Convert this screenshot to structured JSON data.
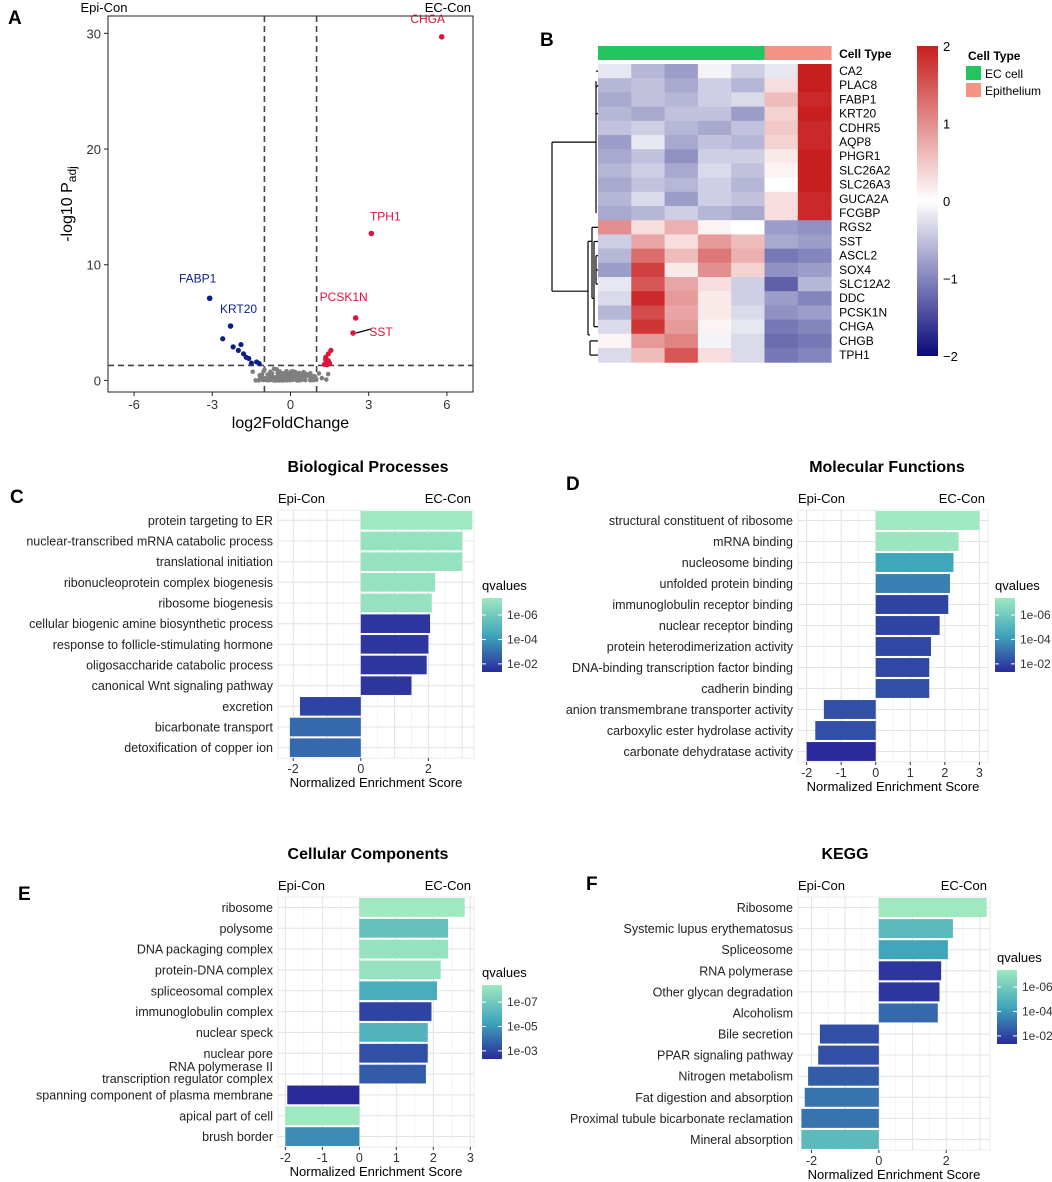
{
  "palette": {
    "q_low": "#9fe8c0",
    "q_mid": "#3fa6bb",
    "q_high": "#2b2a9c",
    "up": "#dc143c",
    "down": "#0a1e8c",
    "ns": "#7f7f7f",
    "ec_cell": "#22c55e",
    "epithelium": "#f49383",
    "heat_low": "#0a0a7a",
    "heat_mid": "#ffffff",
    "heat_high": "#c81e1e"
  },
  "panels": {
    "a": "A",
    "b": "B",
    "c": "C",
    "d": "D",
    "e": "E",
    "f": "F"
  },
  "chart_data": [
    {
      "id": "A",
      "type": "scatter",
      "title": "",
      "xlabel": "log2FoldChange",
      "ylabel": "-log10 P",
      "ylabel_sub": "adj",
      "left_group": "Epi-Con",
      "right_group": "EC-Con",
      "xlim": [
        -7,
        7
      ],
      "ylim": [
        -1,
        31.5
      ],
      "xticks": [
        -6,
        -3,
        0,
        3,
        6
      ],
      "yticks": [
        0,
        10,
        20,
        30
      ],
      "vlines": [
        -1,
        1
      ],
      "hline": 1.3,
      "labeled": [
        {
          "gene": "CHGA",
          "x": 5.8,
          "y": 29.7,
          "group": "up"
        },
        {
          "gene": "TPH1",
          "x": 3.1,
          "y": 12.7,
          "group": "up"
        },
        {
          "gene": "PCSK1N",
          "x": 2.5,
          "y": 5.4,
          "group": "up"
        },
        {
          "gene": "SST",
          "x": 2.4,
          "y": 4.1,
          "group": "up"
        },
        {
          "gene": "FABP1",
          "x": -3.1,
          "y": 7.1,
          "group": "down"
        },
        {
          "gene": "KRT20",
          "x": -2.3,
          "y": 4.7,
          "group": "down"
        }
      ],
      "up_points": [
        [
          1.35,
          2.0
        ],
        [
          1.45,
          1.7
        ],
        [
          1.5,
          1.5
        ],
        [
          1.4,
          1.35
        ],
        [
          1.3,
          1.4
        ],
        [
          1.55,
          2.6
        ],
        [
          1.45,
          2.3
        ],
        [
          1.35,
          1.8
        ]
      ],
      "down_points": [
        [
          -1.6,
          1.9
        ],
        [
          -1.8,
          2.3
        ],
        [
          -2.0,
          2.6
        ],
        [
          -1.3,
          1.6
        ],
        [
          -1.5,
          1.5
        ],
        [
          -1.9,
          3.1
        ],
        [
          -2.2,
          2.9
        ],
        [
          -1.7,
          2.0
        ],
        [
          -1.2,
          1.45
        ],
        [
          -2.6,
          3.6
        ]
      ]
    },
    {
      "id": "B",
      "type": "heatmap",
      "annotation_title": "Cell Type",
      "legend_title": "Cell Type",
      "legend_entries": [
        "EC cell",
        "Epithelium"
      ],
      "column_types": [
        "EC cell",
        "EC cell",
        "EC cell",
        "EC cell",
        "EC cell",
        "Epithelium",
        "Epithelium"
      ],
      "scale_ticks": [
        2,
        1,
        0,
        -1,
        -2
      ],
      "scale_range": [
        -2,
        2
      ],
      "rows": [
        "CA2",
        "PLAC8",
        "FABP1",
        "KRT20",
        "CDHR5",
        "AQP8",
        "PHGR1",
        "SLC26A2",
        "SLC26A3",
        "GUCA2A",
        "FCGBP",
        "RGS2",
        "SST",
        "ASCL2",
        "SOX4",
        "SLC12A2",
        "DDC",
        "PCSK1N",
        "CHGA",
        "CHGB",
        "TPH1"
      ],
      "values": [
        [
          -0.2,
          -0.6,
          -0.8,
          -0.1,
          -0.4,
          -0.2,
          2.2
        ],
        [
          -0.6,
          -0.5,
          -0.7,
          -0.4,
          -0.6,
          0.3,
          2.1
        ],
        [
          -0.7,
          -0.5,
          -0.6,
          -0.4,
          -0.3,
          0.6,
          1.9
        ],
        [
          -0.6,
          -0.7,
          -0.5,
          -0.5,
          -0.8,
          0.4,
          2.0
        ],
        [
          -0.5,
          -0.4,
          -0.6,
          -0.7,
          -0.5,
          0.5,
          1.9
        ],
        [
          -0.8,
          -0.2,
          -0.7,
          -0.5,
          -0.6,
          0.4,
          1.9
        ],
        [
          -0.7,
          -0.5,
          -0.9,
          -0.4,
          -0.4,
          0.2,
          2.0
        ],
        [
          -0.6,
          -0.4,
          -0.7,
          -0.3,
          -0.5,
          0.1,
          2.0
        ],
        [
          -0.7,
          -0.5,
          -0.6,
          -0.4,
          -0.6,
          0.0,
          2.0
        ],
        [
          -0.6,
          -0.3,
          -0.8,
          -0.4,
          -0.5,
          0.3,
          1.9
        ],
        [
          -0.7,
          -0.6,
          -0.4,
          -0.6,
          -0.7,
          0.3,
          1.9
        ],
        [
          1.0,
          0.3,
          0.7,
          0.1,
          0.0,
          -0.8,
          -0.9
        ],
        [
          -0.4,
          0.8,
          0.3,
          0.9,
          0.6,
          -0.7,
          -0.8
        ],
        [
          -0.6,
          1.3,
          0.6,
          1.2,
          0.7,
          -1.1,
          -1.0
        ],
        [
          -0.8,
          1.7,
          0.2,
          1.0,
          0.4,
          -0.9,
          -0.8
        ],
        [
          -0.2,
          1.5,
          0.8,
          0.3,
          -0.4,
          -1.3,
          -0.6
        ],
        [
          -0.3,
          1.9,
          0.9,
          0.2,
          -0.4,
          -0.8,
          -1.0
        ],
        [
          -0.6,
          1.6,
          0.8,
          0.2,
          -0.3,
          -0.9,
          -0.8
        ],
        [
          -0.3,
          1.8,
          0.9,
          0.1,
          -0.2,
          -1.1,
          -1.0
        ],
        [
          0.1,
          0.9,
          1.1,
          -0.1,
          -0.3,
          -1.2,
          -1.1
        ],
        [
          -0.3,
          0.6,
          1.5,
          0.3,
          -0.3,
          -1.1,
          -1.0
        ]
      ]
    },
    {
      "id": "C",
      "type": "bar",
      "orientation": "horizontal",
      "title": "Biological Processes",
      "xlabel": "Normalized Enrichment Score",
      "left_group": "Epi-Con",
      "right_group": "EC-Con",
      "xlim": [
        -2.45,
        3.35
      ],
      "xticks": [
        -2,
        0,
        2
      ],
      "legend_title": "qvalues",
      "legend_ticks": [
        "1e-06",
        "1e-04",
        "1e-02"
      ],
      "categories": [
        "protein targeting to ER",
        "nuclear-transcribed mRNA catabolic process",
        "translational initiation",
        "ribonucleoprotein complex biogenesis",
        "ribosome biogenesis",
        "cellular biogenic amine biosynthetic process",
        "response to follicle-stimulating hormone",
        "oligosaccharide catabolic process",
        "canonical Wnt signaling pathway",
        "excretion",
        "bicarbonate transport",
        "detoxification of copper ion"
      ],
      "values": [
        3.3,
        3.0,
        3.0,
        2.2,
        2.1,
        2.05,
        2.0,
        1.95,
        1.5,
        -1.8,
        -2.1,
        -2.1
      ],
      "color_level": [
        0.0,
        0.05,
        0.05,
        0.05,
        0.05,
        0.95,
        0.95,
        0.95,
        0.95,
        0.9,
        0.75,
        0.75
      ]
    },
    {
      "id": "D",
      "type": "bar",
      "orientation": "horizontal",
      "title": "Molecular Functions",
      "xlabel": "Normalized Enrichment Score",
      "left_group": "Epi-Con",
      "right_group": "EC-Con",
      "xlim": [
        -2.25,
        3.25
      ],
      "xticks": [
        -2,
        -1,
        0,
        1,
        2,
        3
      ],
      "legend_title": "qvalues",
      "legend_ticks": [
        "1e-06",
        "1e-04",
        "1e-02"
      ],
      "categories": [
        "structural constituent of ribosome",
        "mRNA binding",
        "nucleosome binding",
        "unfolded protein binding",
        "immunoglobulin receptor binding",
        "nuclear receptor binding",
        "protein heterodimerization activity",
        "DNA-binding transcription factor binding",
        "cadherin binding",
        "anion transmembrane transporter activity",
        "carboxylic ester hydrolase activity",
        "carbonate dehydratase activity"
      ],
      "values": [
        3.0,
        2.4,
        2.25,
        2.15,
        2.1,
        1.85,
        1.6,
        1.55,
        1.55,
        -1.5,
        -1.75,
        -2.0
      ],
      "color_level": [
        0.0,
        0.02,
        0.5,
        0.65,
        0.9,
        0.9,
        0.88,
        0.88,
        0.85,
        0.85,
        0.85,
        1.0
      ]
    },
    {
      "id": "E",
      "type": "bar",
      "orientation": "horizontal",
      "title": "Cellular Components",
      "xlabel": "Normalized Enrichment Score",
      "left_group": "Epi-Con",
      "right_group": "EC-Con",
      "xlim": [
        -2.2,
        3.1
      ],
      "xticks": [
        -2,
        -1,
        0,
        1,
        2,
        3
      ],
      "legend_title": "qvalues",
      "legend_ticks": [
        "1e-07",
        "1e-05",
        "1e-03"
      ],
      "categories": [
        "ribosome",
        "polysome",
        "DNA packaging complex",
        "protein-DNA complex",
        "spliceosomal complex",
        "immunoglobulin complex",
        "nuclear speck",
        "nuclear pore",
        "RNA polymerase II\ntranscription regulator complex",
        "spanning component of plasma membrane",
        "apical part of cell",
        "brush border"
      ],
      "values": [
        2.85,
        2.4,
        2.4,
        2.2,
        2.1,
        1.95,
        1.85,
        1.85,
        1.8,
        -1.95,
        -2.0,
        -2.0
      ],
      "color_level": [
        0.0,
        0.3,
        0.05,
        0.05,
        0.45,
        0.9,
        0.4,
        0.85,
        0.8,
        1.0,
        0.0,
        0.6
      ]
    },
    {
      "id": "F",
      "type": "bar",
      "orientation": "horizontal",
      "title": "KEGG",
      "xlabel": "Normalized Enrichment Score",
      "left_group": "Epi-Con",
      "right_group": "EC-Con",
      "xlim": [
        -2.4,
        3.3
      ],
      "xticks": [
        -2,
        0,
        2
      ],
      "legend_title": "qvalues",
      "legend_ticks": [
        "1e-06",
        "1e-04",
        "1e-02"
      ],
      "categories": [
        "Ribosome",
        "Systemic lupus erythematosus",
        "Spliceosome",
        "RNA polymerase",
        "Other glycan degradation",
        "Alcoholism",
        "Bile secretion",
        "PPAR signaling pathway",
        "Nitrogen metabolism",
        "Fat digestion and absorption",
        "Proximal tubule bicarbonate reclamation",
        "Mineral absorption"
      ],
      "values": [
        3.2,
        2.2,
        2.05,
        1.85,
        1.8,
        1.75,
        -1.75,
        -1.8,
        -2.1,
        -2.2,
        -2.3,
        -2.3
      ],
      "color_level": [
        0.0,
        0.35,
        0.5,
        0.95,
        0.95,
        0.75,
        0.85,
        0.85,
        0.8,
        0.7,
        0.7,
        0.35
      ]
    }
  ]
}
